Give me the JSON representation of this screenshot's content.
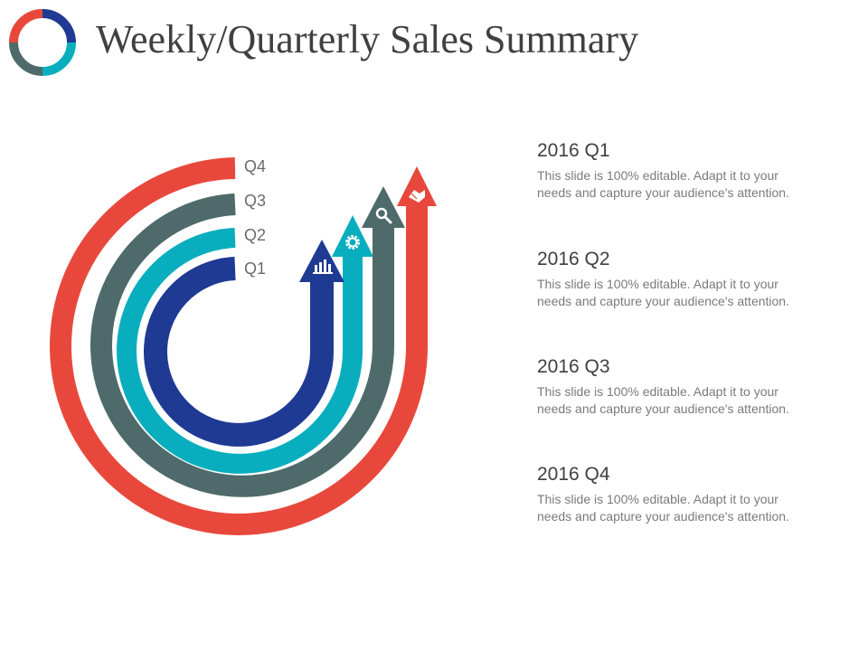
{
  "title": "Weekly/Quarterly Sales Summary",
  "colors": {
    "q1": "#1f3a93",
    "q2": "#08aebd",
    "q3": "#4f6a6b",
    "q4": "#e8483c",
    "title": "#404040",
    "body_text": "#7a7a7a"
  },
  "diagram": {
    "quarters": [
      {
        "label": "Q1",
        "icon": "bar-chart-icon"
      },
      {
        "label": "Q2",
        "icon": "gear-icon"
      },
      {
        "label": "Q3",
        "icon": "magnifier-icon"
      },
      {
        "label": "Q4",
        "icon": "handshake-icon"
      }
    ]
  },
  "entries": [
    {
      "heading": "2016 Q1",
      "text": "This slide is 100% editable. Adapt it to your needs and capture your audience's attention."
    },
    {
      "heading": "2016 Q2",
      "text": "This slide is 100% editable. Adapt it to your needs and capture your audience's attention."
    },
    {
      "heading": "2016 Q3",
      "text": "This slide is 100% editable. Adapt it to your needs and capture your audience's attention."
    },
    {
      "heading": "2016 Q4",
      "text": "This slide is 100% editable. Adapt it to your needs and capture your audience's attention."
    }
  ]
}
